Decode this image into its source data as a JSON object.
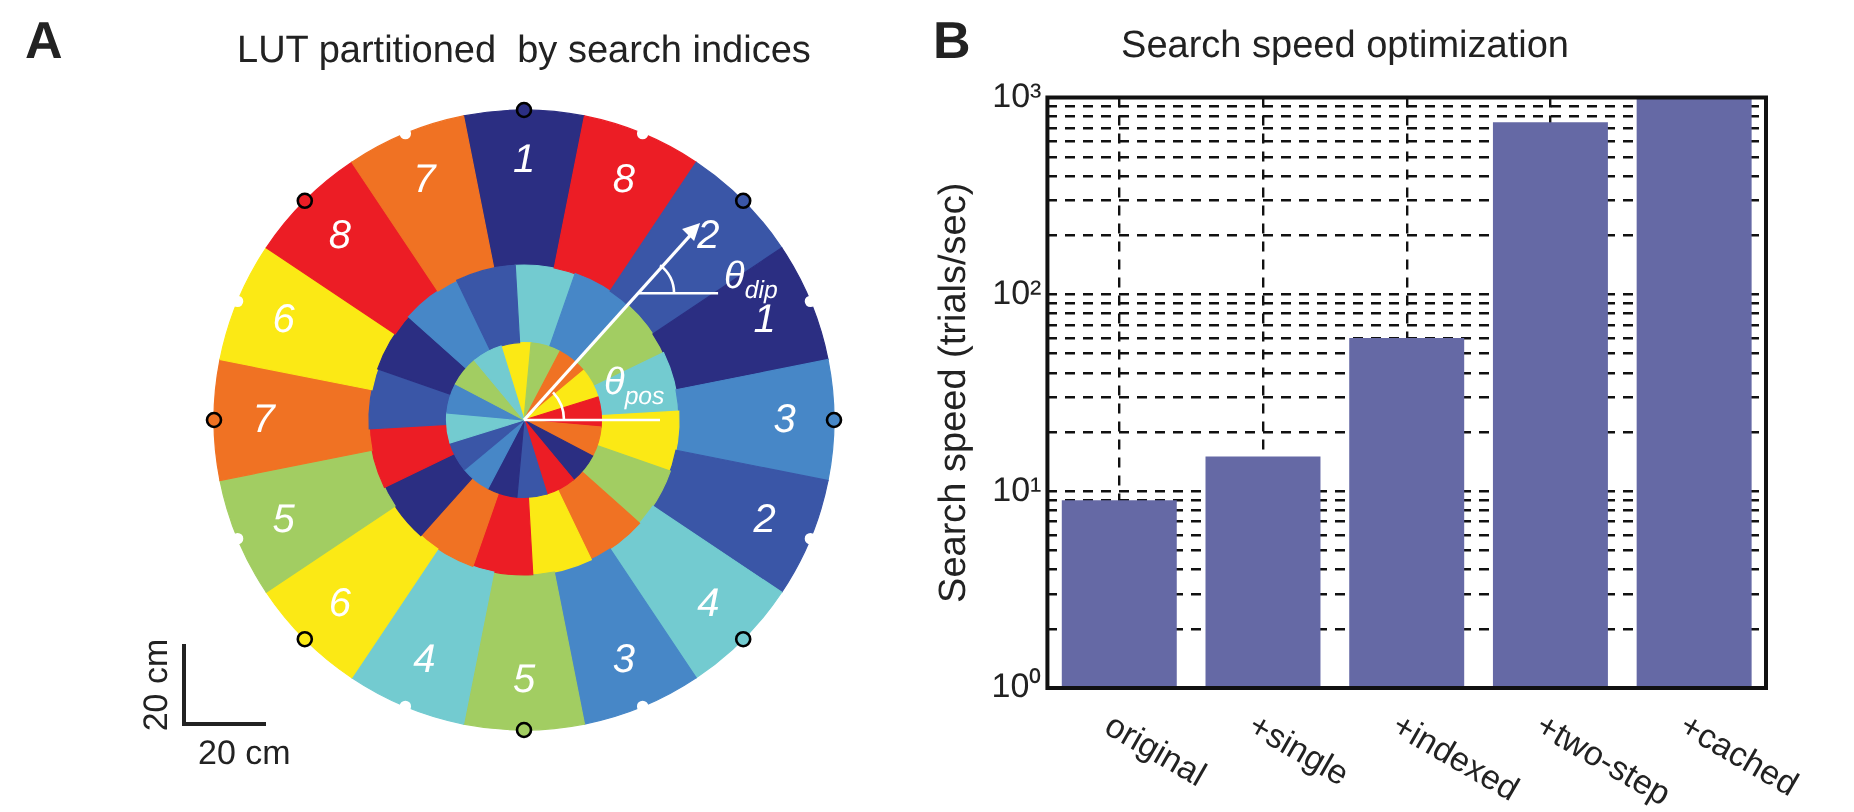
{
  "chart_data": [
    {
      "type": "other",
      "title": "LUT partitioned  by search indices",
      "annotations": [
        "A",
        "1",
        "8",
        "2",
        "1",
        "3",
        "2",
        "4",
        "3",
        "5",
        "4",
        "6",
        "5",
        "7",
        "6",
        "8",
        "7",
        "θ$_{dip}$",
        "θ$_{pos}$",
        "20 cm",
        "20 cm"
      ]
    },
    {
      "type": "bar",
      "title": "Search speed optimization",
      "ylabel": "Search speed (trials/sec)",
      "categories": [
        "original",
        "+single",
        "+indexed",
        "+two-step",
        "+cached"
      ],
      "values": [
        9,
        15,
        60,
        750,
        1000
      ],
      "color": "#6569a5",
      "log": true,
      "ylim": [
        1,
        1000
      ],
      "grid": true,
      "annotations": [
        "B"
      ],
      "yticks": [
        {
          "value": 1,
          "label": "10⁰"
        },
        {
          "value": 2,
          "label": null
        },
        {
          "value": 3,
          "label": null
        },
        {
          "value": 4,
          "label": null
        },
        {
          "value": 5,
          "label": null
        },
        {
          "value": 6,
          "label": null
        },
        {
          "value": 7,
          "label": null
        },
        {
          "value": 8,
          "label": null
        },
        {
          "value": 9,
          "label": null
        },
        {
          "value": 10,
          "label": "10¹"
        },
        {
          "value": 20,
          "label": null
        },
        {
          "value": 30,
          "label": null
        },
        {
          "value": 40,
          "label": null
        },
        {
          "value": 50,
          "label": null
        },
        {
          "value": 60,
          "label": null
        },
        {
          "value": 70,
          "label": null
        },
        {
          "value": 80,
          "label": null
        },
        {
          "value": 90,
          "label": null
        },
        {
          "value": 100,
          "label": "10²"
        },
        {
          "value": 200,
          "label": null
        },
        {
          "value": 300,
          "label": null
        },
        {
          "value": 400,
          "label": null
        },
        {
          "value": 500,
          "label": null
        },
        {
          "value": 600,
          "label": null
        },
        {
          "value": 700,
          "label": null
        },
        {
          "value": 800,
          "label": null
        },
        {
          "value": 900,
          "label": null
        },
        {
          "value": 1000,
          "label": "10³"
        }
      ]
    }
  ]
}
